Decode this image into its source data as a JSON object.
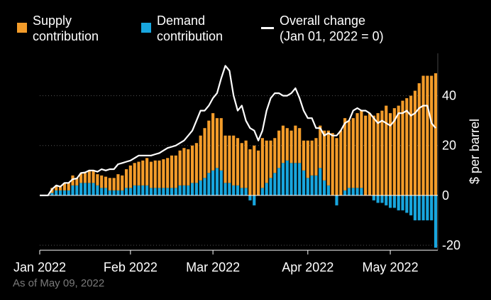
{
  "legend": {
    "supply": {
      "line1": "Supply",
      "line2": "contribution",
      "color": "#f39c2a"
    },
    "demand": {
      "line1": "Demand",
      "line2": "contribution",
      "color": "#18a6de"
    },
    "overall": {
      "line1": "Overall change",
      "line2": "(Jan 01, 2022 = 0)",
      "color": "#ffffff"
    }
  },
  "footnote": "As of May 09, 2022",
  "chart_data": {
    "type": "bar",
    "title": "",
    "xlabel": "",
    "ylabel": "$ per barrel",
    "ylim": [
      -22,
      57
    ],
    "yticks": [
      -20,
      0,
      20,
      40
    ],
    "xticks": [
      {
        "label": "Jan 2022",
        "index": 0
      },
      {
        "label": "Feb 2022",
        "index": 22
      },
      {
        "label": "Mar 2022",
        "index": 42
      },
      {
        "label": "Apr 2022",
        "index": 65
      },
      {
        "label": "May 2022",
        "index": 85
      }
    ],
    "series": [
      {
        "name": "Supply contribution",
        "color": "#f39c2a",
        "values": [
          0,
          0,
          0,
          2,
          2,
          1.5,
          3,
          3,
          4,
          3,
          4,
          4,
          5,
          5,
          4.5,
          5,
          4.5,
          5,
          5,
          6.5,
          6,
          7.5,
          9,
          9,
          9.5,
          10,
          11,
          10.5,
          11,
          11,
          11.5,
          12,
          13,
          13,
          14,
          15,
          14.5,
          15,
          16,
          18,
          20,
          21,
          23,
          20,
          21,
          19,
          19,
          20,
          19,
          18,
          19,
          18.5,
          20,
          18,
          20,
          17,
          15,
          14,
          15,
          15,
          13,
          13,
          15,
          14,
          12,
          15,
          14,
          15,
          17,
          20,
          22,
          25,
          23,
          26,
          29,
          27,
          28,
          30,
          31,
          32,
          33,
          32,
          33,
          34,
          36,
          33,
          35,
          36,
          38,
          39,
          40,
          42,
          45,
          48,
          48,
          48,
          49
        ]
      },
      {
        "name": "Demand contribution",
        "color": "#18a6de",
        "values": [
          0,
          0,
          0,
          1,
          2,
          2,
          2,
          2,
          4,
          4,
          5,
          5,
          5,
          5,
          4,
          3,
          3,
          2,
          2,
          2,
          2,
          3,
          3,
          4,
          4,
          4,
          4,
          3,
          3,
          3,
          3,
          3,
          3,
          3,
          4,
          4,
          4,
          5,
          5,
          6,
          7,
          9,
          10,
          11,
          10,
          5,
          5,
          4,
          4,
          3,
          3,
          -2,
          -4,
          0,
          3,
          5,
          7,
          9,
          11,
          13,
          14,
          13,
          13,
          13,
          10,
          7,
          8,
          8,
          11,
          6,
          4,
          0,
          -4,
          0,
          2,
          3,
          3,
          3,
          3,
          0,
          0,
          -2,
          -3,
          -3,
          -4,
          -5,
          -5,
          -6,
          -6,
          -7,
          -8,
          -10,
          -10,
          -10,
          -10,
          -10,
          -21
        ]
      },
      {
        "name": "Overall change",
        "color": "#ffffff",
        "values": [
          0,
          0,
          0,
          2.5,
          4,
          3.5,
          5,
          5,
          6.5,
          6.8,
          9,
          9.2,
          10,
          10,
          9.5,
          10.5,
          10,
          10.5,
          10.5,
          12.5,
          13,
          13.5,
          14,
          15,
          16,
          16,
          16,
          16,
          16.5,
          17,
          18,
          19,
          19.5,
          20,
          21,
          22,
          24,
          26,
          30,
          34,
          34,
          36,
          39,
          41,
          47,
          52,
          50,
          40,
          34,
          36,
          30,
          27,
          26,
          22,
          26,
          34,
          39,
          41,
          41,
          40,
          40,
          41,
          43,
          39,
          34,
          31,
          31,
          27,
          27,
          24,
          25,
          24,
          24,
          26,
          29,
          30,
          34,
          35,
          34,
          34,
          33,
          31,
          29,
          30,
          29,
          28,
          30,
          33,
          33,
          34,
          32,
          33,
          35,
          36,
          36,
          29,
          27
        ]
      }
    ]
  }
}
